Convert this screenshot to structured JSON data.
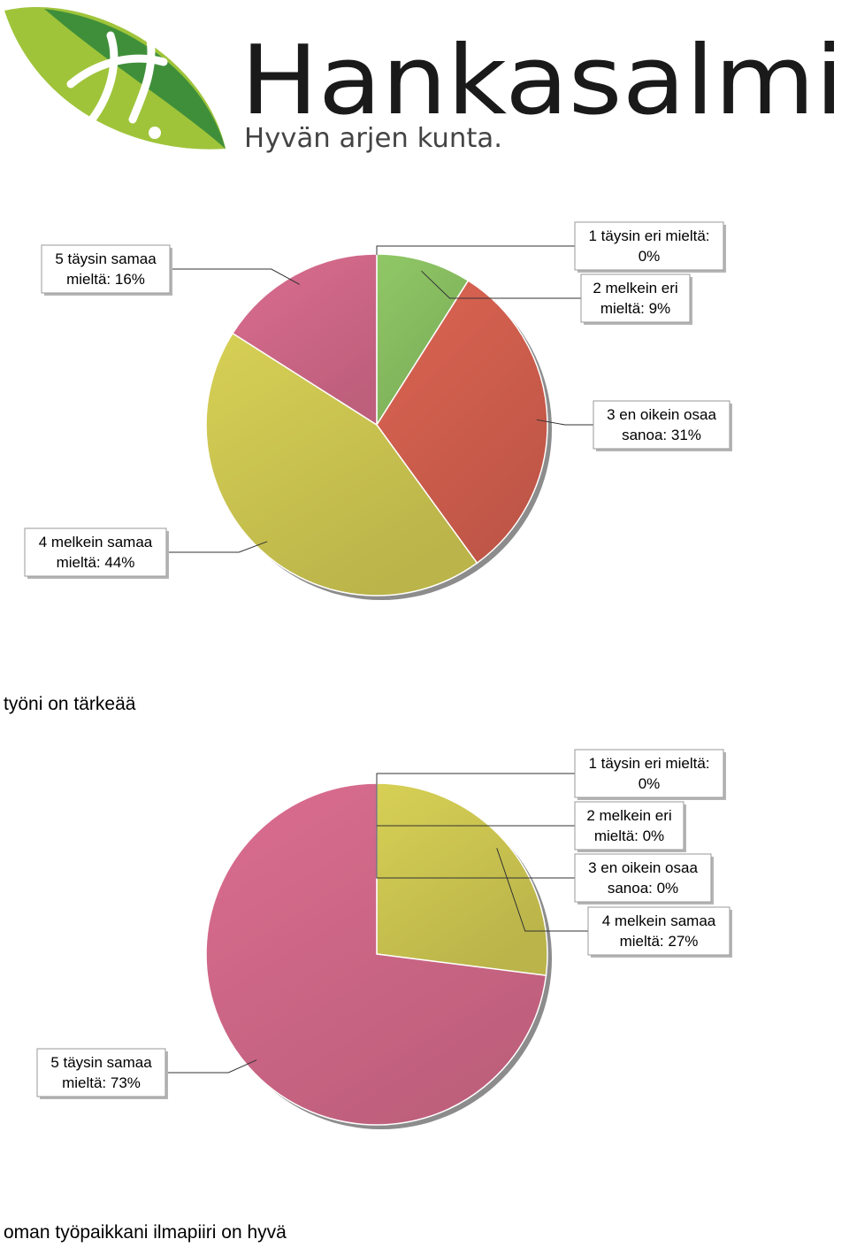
{
  "brand": {
    "name": "Hankasalmi",
    "slogan": "Hyvän arjen kunta.",
    "colors": {
      "leaf_light": "#9fc43a",
      "leaf_dark": "#3f8f3a",
      "text": "#1a1a1a",
      "slogan": "#444444"
    }
  },
  "chart_data": [
    {
      "type": "pie",
      "categories": [
        "1 täysin eri mieltä",
        "2 melkein eri mieltä",
        "3 en oikein osaa sanoa",
        "4 melkein samaa mieltä",
        "5 täysin samaa mieltä"
      ],
      "values": [
        0,
        9,
        31,
        44,
        16
      ],
      "labels": [
        [
          "1 täysin eri mieltä:",
          "0%"
        ],
        [
          "2 melkein eri",
          "mieltä: 9%"
        ],
        [
          "3 en oikein osaa",
          "sanoa: 31%"
        ],
        [
          "4 melkein samaa",
          "mieltä: 44%"
        ],
        [
          "5 täysin samaa",
          "mieltä: 16%"
        ]
      ],
      "colors": [
        "#8ac062",
        "#8ac062",
        "#d4604f",
        "#cfc852",
        "#d3698a"
      ],
      "caption": "työni on tärkeää"
    },
    {
      "type": "pie",
      "categories": [
        "1 täysin eri mieltä",
        "2 melkein eri mieltä",
        "3 en oikein osaa sanoa",
        "4 melkein samaa mieltä",
        "5 täysin samaa mieltä"
      ],
      "values": [
        0,
        0,
        0,
        27,
        73
      ],
      "labels": [
        [
          "1 täysin eri mieltä:",
          "0%"
        ],
        [
          "2 melkein eri",
          "mieltä: 0%"
        ],
        [
          "3 en oikein osaa",
          "sanoa: 0%"
        ],
        [
          "4 melkein samaa",
          "mieltä: 27%"
        ],
        [
          "5 täysin samaa",
          "mieltä: 73%"
        ]
      ],
      "colors": [
        "#8ac062",
        "#8ac062",
        "#d4604f",
        "#cfc852",
        "#d3698a"
      ],
      "caption": "oman työpaikkani ilmapiiri on hyvä"
    }
  ]
}
